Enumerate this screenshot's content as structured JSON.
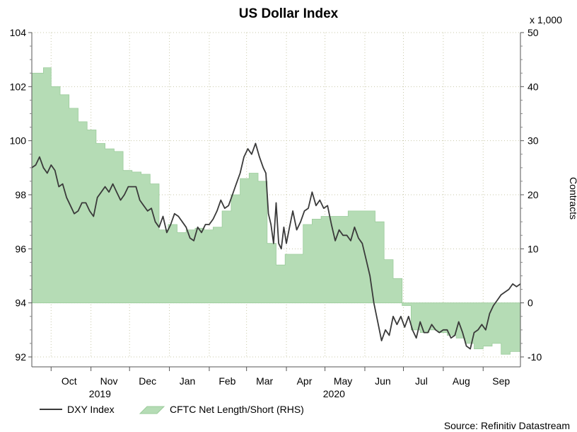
{
  "chart_data": {
    "type": "line",
    "title": "US Dollar Index",
    "source": "Source: Refinitiv Datastream",
    "colors": {
      "dxy": "#3a3a3a",
      "cftc_fill": "#b5dcb5",
      "cftc_edge": "#9ccc9c",
      "grid": "#c8c8a8"
    },
    "left_axis": {
      "ylim": [
        92,
        104
      ],
      "ticks": [
        "92",
        "94",
        "96",
        "98",
        "100",
        "102",
        "104"
      ]
    },
    "right_axis": {
      "ylim": [
        -10,
        50
      ],
      "ticks": [
        "-10",
        "0",
        "10",
        "20",
        "30",
        "40",
        "50"
      ],
      "multiplier_label": "x 1,000",
      "label": "Contracts"
    },
    "x_axis": {
      "range": [
        "2019-09-16",
        "2020-09-30"
      ],
      "month_labels": [
        "Oct",
        "Nov",
        "Dec",
        "Jan",
        "Feb",
        "Mar",
        "Apr",
        "May",
        "Jun",
        "Jul",
        "Aug",
        "Sep"
      ],
      "month_dates": [
        "2019-10-15",
        "2019-11-15",
        "2019-12-15",
        "2020-01-15",
        "2020-02-15",
        "2020-03-15",
        "2020-04-15",
        "2020-05-15",
        "2020-06-15",
        "2020-07-15",
        "2020-08-15",
        "2020-09-15"
      ],
      "boundary_dates": [
        "2019-10-01",
        "2019-11-01",
        "2019-12-01",
        "2020-01-01",
        "2020-02-01",
        "2020-03-01",
        "2020-04-01",
        "2020-05-01",
        "2020-06-01",
        "2020-07-01",
        "2020-08-01",
        "2020-09-01"
      ],
      "year_labels": [
        {
          "text": "2019",
          "date": "2019-11-08"
        },
        {
          "text": "2020",
          "date": "2020-05-08"
        }
      ]
    },
    "series": [
      {
        "name": "DXY Index",
        "axis": "left",
        "points": [
          [
            "2019-09-16",
            99.0
          ],
          [
            "2019-09-19",
            99.1
          ],
          [
            "2019-09-22",
            99.4
          ],
          [
            "2019-09-25",
            99.0
          ],
          [
            "2019-09-28",
            98.8
          ],
          [
            "2019-10-01",
            99.1
          ],
          [
            "2019-10-04",
            98.9
          ],
          [
            "2019-10-07",
            98.3
          ],
          [
            "2019-10-10",
            98.4
          ],
          [
            "2019-10-13",
            97.9
          ],
          [
            "2019-10-16",
            97.6
          ],
          [
            "2019-10-19",
            97.3
          ],
          [
            "2019-10-22",
            97.4
          ],
          [
            "2019-10-25",
            97.7
          ],
          [
            "2019-10-28",
            97.7
          ],
          [
            "2019-10-31",
            97.4
          ],
          [
            "2019-11-03",
            97.2
          ],
          [
            "2019-11-06",
            97.9
          ],
          [
            "2019-11-09",
            98.1
          ],
          [
            "2019-11-12",
            98.3
          ],
          [
            "2019-11-15",
            98.1
          ],
          [
            "2019-11-18",
            98.4
          ],
          [
            "2019-11-21",
            98.1
          ],
          [
            "2019-11-24",
            97.8
          ],
          [
            "2019-11-27",
            98.0
          ],
          [
            "2019-11-30",
            98.3
          ],
          [
            "2019-12-03",
            98.3
          ],
          [
            "2019-12-06",
            98.3
          ],
          [
            "2019-12-09",
            97.8
          ],
          [
            "2019-12-12",
            97.6
          ],
          [
            "2019-12-15",
            97.4
          ],
          [
            "2019-12-18",
            97.5
          ],
          [
            "2019-12-21",
            97.0
          ],
          [
            "2019-12-24",
            96.8
          ],
          [
            "2019-12-27",
            97.2
          ],
          [
            "2019-12-30",
            96.6
          ],
          [
            "2020-01-02",
            96.9
          ],
          [
            "2020-01-05",
            97.3
          ],
          [
            "2020-01-08",
            97.2
          ],
          [
            "2020-01-11",
            97.0
          ],
          [
            "2020-01-14",
            96.8
          ],
          [
            "2020-01-17",
            96.4
          ],
          [
            "2020-01-20",
            96.3
          ],
          [
            "2020-01-23",
            96.8
          ],
          [
            "2020-01-26",
            96.6
          ],
          [
            "2020-01-29",
            96.9
          ],
          [
            "2020-02-01",
            96.9
          ],
          [
            "2020-02-04",
            97.1
          ],
          [
            "2020-02-07",
            97.4
          ],
          [
            "2020-02-10",
            97.8
          ],
          [
            "2020-02-13",
            97.5
          ],
          [
            "2020-02-16",
            97.6
          ],
          [
            "2020-02-19",
            98.0
          ],
          [
            "2020-02-22",
            98.4
          ],
          [
            "2020-02-25",
            98.8
          ],
          [
            "2020-02-28",
            99.4
          ],
          [
            "2020-03-02",
            99.7
          ],
          [
            "2020-03-05",
            99.5
          ],
          [
            "2020-03-08",
            99.9
          ],
          [
            "2020-03-11",
            99.4
          ],
          [
            "2020-03-14",
            99.0
          ],
          [
            "2020-03-16",
            98.8
          ],
          [
            "2020-03-18",
            97.3
          ],
          [
            "2020-03-20",
            96.9
          ],
          [
            "2020-03-22",
            96.2
          ],
          [
            "2020-03-24",
            97.7
          ],
          [
            "2020-03-26",
            96.2
          ],
          [
            "2020-03-28",
            96.0
          ],
          [
            "2020-03-30",
            96.8
          ],
          [
            "2020-04-01",
            96.2
          ],
          [
            "2020-04-03",
            96.7
          ],
          [
            "2020-04-06",
            97.4
          ],
          [
            "2020-04-09",
            96.7
          ],
          [
            "2020-04-12",
            97.0
          ],
          [
            "2020-04-15",
            97.4
          ],
          [
            "2020-04-18",
            97.5
          ],
          [
            "2020-04-21",
            98.1
          ],
          [
            "2020-04-24",
            97.6
          ],
          [
            "2020-04-27",
            97.8
          ],
          [
            "2020-04-30",
            97.5
          ],
          [
            "2020-05-03",
            97.6
          ],
          [
            "2020-05-06",
            96.9
          ],
          [
            "2020-05-09",
            96.3
          ],
          [
            "2020-05-12",
            96.7
          ],
          [
            "2020-05-15",
            96.5
          ],
          [
            "2020-05-18",
            96.5
          ],
          [
            "2020-05-21",
            96.3
          ],
          [
            "2020-05-24",
            96.8
          ],
          [
            "2020-05-27",
            96.4
          ],
          [
            "2020-05-30",
            96.2
          ],
          [
            "2020-06-02",
            95.6
          ],
          [
            "2020-06-05",
            95.0
          ],
          [
            "2020-06-08",
            94.0
          ],
          [
            "2020-06-11",
            93.3
          ],
          [
            "2020-06-14",
            92.6
          ],
          [
            "2020-06-17",
            93.0
          ],
          [
            "2020-06-20",
            92.8
          ],
          [
            "2020-06-23",
            93.5
          ],
          [
            "2020-06-26",
            93.2
          ],
          [
            "2020-06-29",
            93.5
          ],
          [
            "2020-07-02",
            93.1
          ],
          [
            "2020-07-05",
            93.5
          ],
          [
            "2020-07-08",
            93.0
          ],
          [
            "2020-07-11",
            92.7
          ],
          [
            "2020-07-14",
            93.3
          ],
          [
            "2020-07-17",
            92.9
          ],
          [
            "2020-07-20",
            92.9
          ],
          [
            "2020-07-23",
            93.2
          ],
          [
            "2020-07-26",
            93.0
          ],
          [
            "2020-07-29",
            92.9
          ],
          [
            "2020-08-01",
            93.0
          ],
          [
            "2020-08-04",
            93.0
          ],
          [
            "2020-08-07",
            92.7
          ],
          [
            "2020-08-10",
            92.8
          ],
          [
            "2020-08-13",
            93.3
          ],
          [
            "2020-08-16",
            92.9
          ],
          [
            "2020-08-19",
            92.4
          ],
          [
            "2020-08-22",
            92.3
          ],
          [
            "2020-08-25",
            92.9
          ],
          [
            "2020-08-28",
            93.0
          ],
          [
            "2020-08-31",
            93.2
          ],
          [
            "2020-09-03",
            93.0
          ],
          [
            "2020-09-06",
            93.6
          ],
          [
            "2020-09-09",
            93.9
          ],
          [
            "2020-09-12",
            94.1
          ],
          [
            "2020-09-15",
            94.3
          ],
          [
            "2020-09-18",
            94.4
          ],
          [
            "2020-09-21",
            94.5
          ],
          [
            "2020-09-24",
            94.7
          ],
          [
            "2020-09-27",
            94.6
          ],
          [
            "2020-09-30",
            94.7
          ]
        ]
      },
      {
        "name": "CFTC Net Length/Short (RHS)",
        "axis": "right",
        "steps": [
          [
            "2019-09-16",
            42.5
          ],
          [
            "2019-09-23",
            42.5
          ],
          [
            "2019-09-25",
            43.5
          ],
          [
            "2019-10-01",
            40.0
          ],
          [
            "2019-10-08",
            38.5
          ],
          [
            "2019-10-15",
            36.0
          ],
          [
            "2019-10-22",
            33.5
          ],
          [
            "2019-10-29",
            32.0
          ],
          [
            "2019-11-05",
            29.5
          ],
          [
            "2019-11-12",
            28.5
          ],
          [
            "2019-11-19",
            28.0
          ],
          [
            "2019-11-26",
            24.5
          ],
          [
            "2019-12-03",
            24.2
          ],
          [
            "2019-12-10",
            23.8
          ],
          [
            "2019-12-17",
            22.0
          ],
          [
            "2019-12-24",
            13.5
          ],
          [
            "2019-12-31",
            14.5
          ],
          [
            "2020-01-07",
            13.0
          ],
          [
            "2020-01-14",
            13.5
          ],
          [
            "2020-01-21",
            13.8
          ],
          [
            "2020-01-28",
            13.5
          ],
          [
            "2020-02-04",
            14.0
          ],
          [
            "2020-02-11",
            17.0
          ],
          [
            "2020-02-18",
            20.0
          ],
          [
            "2020-02-25",
            23.0
          ],
          [
            "2020-03-03",
            24.0
          ],
          [
            "2020-03-10",
            22.5
          ],
          [
            "2020-03-17",
            11.0
          ],
          [
            "2020-03-24",
            7.0
          ],
          [
            "2020-03-31",
            9.0
          ],
          [
            "2020-04-07",
            9.0
          ],
          [
            "2020-04-14",
            14.5
          ],
          [
            "2020-04-21",
            15.5
          ],
          [
            "2020-04-28",
            16.0
          ],
          [
            "2020-05-05",
            16.0
          ],
          [
            "2020-05-12",
            16.0
          ],
          [
            "2020-05-19",
            17.0
          ],
          [
            "2020-05-26",
            17.0
          ],
          [
            "2020-06-02",
            17.0
          ],
          [
            "2020-06-09",
            15.0
          ],
          [
            "2020-06-16",
            8.0
          ],
          [
            "2020-06-23",
            4.5
          ],
          [
            "2020-06-30",
            -0.5
          ],
          [
            "2020-07-07",
            -5.0
          ],
          [
            "2020-07-14",
            -5.5
          ],
          [
            "2020-07-21",
            -5.0
          ],
          [
            "2020-07-28",
            -5.5
          ],
          [
            "2020-08-04",
            -6.0
          ],
          [
            "2020-08-11",
            -6.5
          ],
          [
            "2020-08-18",
            -7.5
          ],
          [
            "2020-08-25",
            -8.5
          ],
          [
            "2020-09-01",
            -8.0
          ],
          [
            "2020-09-08",
            -7.5
          ],
          [
            "2020-09-15",
            -9.5
          ],
          [
            "2020-09-22",
            -9.0
          ],
          [
            "2020-09-30",
            -9.0
          ]
        ]
      }
    ],
    "legend": {
      "placement": "bottom-left",
      "items": [
        {
          "label": "DXY Index",
          "kind": "line"
        },
        {
          "label": "CFTC Net Length/Short (RHS)",
          "kind": "area"
        }
      ]
    }
  }
}
